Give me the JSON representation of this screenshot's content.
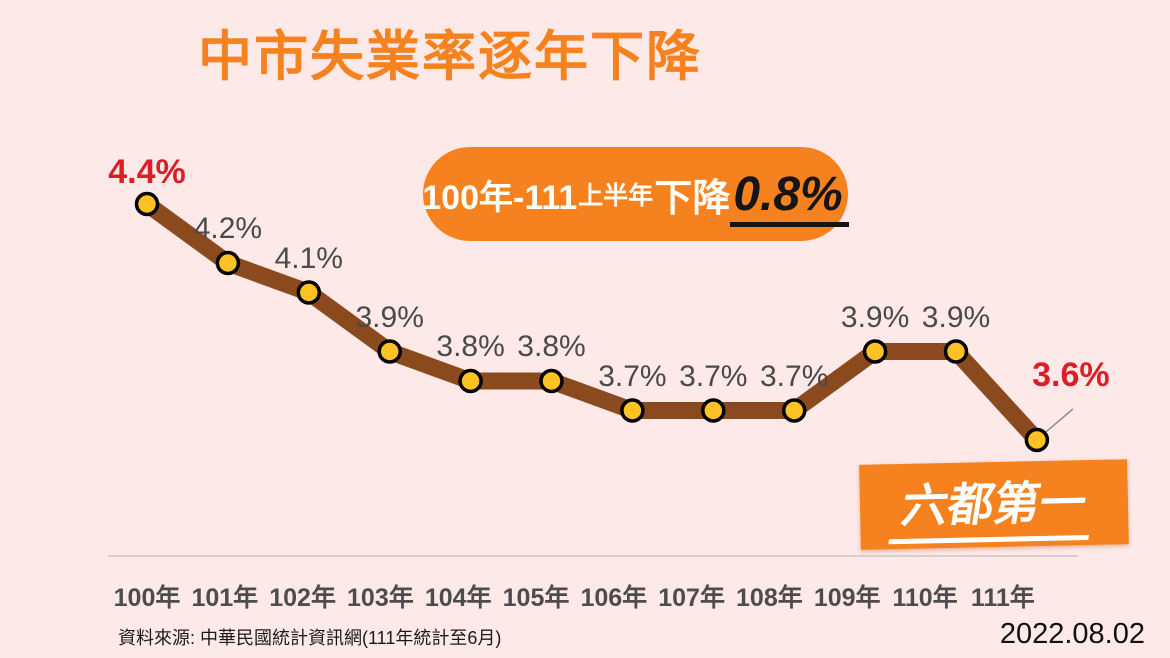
{
  "title": "中市失業率逐年下降",
  "summary_badge": {
    "range": "100年-111",
    "half_year": "上半年",
    "verb": "下降",
    "value": "0.8%"
  },
  "ranking_badge": "六都第一",
  "source": "資料來源: 中華民國統計資訊網(111年統計至6月)",
  "date": "2022.08.02",
  "colors": {
    "background": "#FDE9E7",
    "orange": "#F5821F",
    "line_brown": "#8A4A1E",
    "marker_yellow": "#FFC224",
    "marker_stroke": "#000000",
    "red": "#DC1E26",
    "label_gray": "#4A4A4A",
    "axis_gray": "#D8CECD",
    "leader_gray": "#8F8F8F"
  },
  "chart_data": {
    "type": "line",
    "title": "中市失業率逐年下降",
    "categories": [
      "100年",
      "101年",
      "102年",
      "103年",
      "104年",
      "105年",
      "106年",
      "107年",
      "108年",
      "109年",
      "110年",
      "111年"
    ],
    "values": [
      4.4,
      4.2,
      4.1,
      3.9,
      3.8,
      3.8,
      3.7,
      3.7,
      3.7,
      3.9,
      3.9,
      3.6
    ],
    "point_labels": [
      {
        "text": "4.4%",
        "emphasis": "red",
        "leader_line": false
      },
      {
        "text": "4.2%",
        "emphasis": "gray",
        "leader_line": false
      },
      {
        "text": "4.1%",
        "emphasis": "gray",
        "leader_line": false
      },
      {
        "text": "3.9%",
        "emphasis": "gray",
        "leader_line": false
      },
      {
        "text": "3.8%",
        "emphasis": "gray",
        "leader_line": false
      },
      {
        "text": "3.8%",
        "emphasis": "gray",
        "leader_line": false
      },
      {
        "text": "3.7%",
        "emphasis": "gray",
        "leader_line": false
      },
      {
        "text": "3.7%",
        "emphasis": "gray",
        "leader_line": false
      },
      {
        "text": "3.7%",
        "emphasis": "gray",
        "leader_line": false
      },
      {
        "text": "3.9%",
        "emphasis": "gray",
        "leader_line": false
      },
      {
        "text": "3.9%",
        "emphasis": "gray",
        "leader_line": false
      },
      {
        "text": "3.6%",
        "emphasis": "red",
        "leader_line": true
      }
    ],
    "xlabel": "",
    "ylabel": "",
    "ylim": [
      3.4,
      4.6
    ],
    "grid": false,
    "legend": false
  }
}
